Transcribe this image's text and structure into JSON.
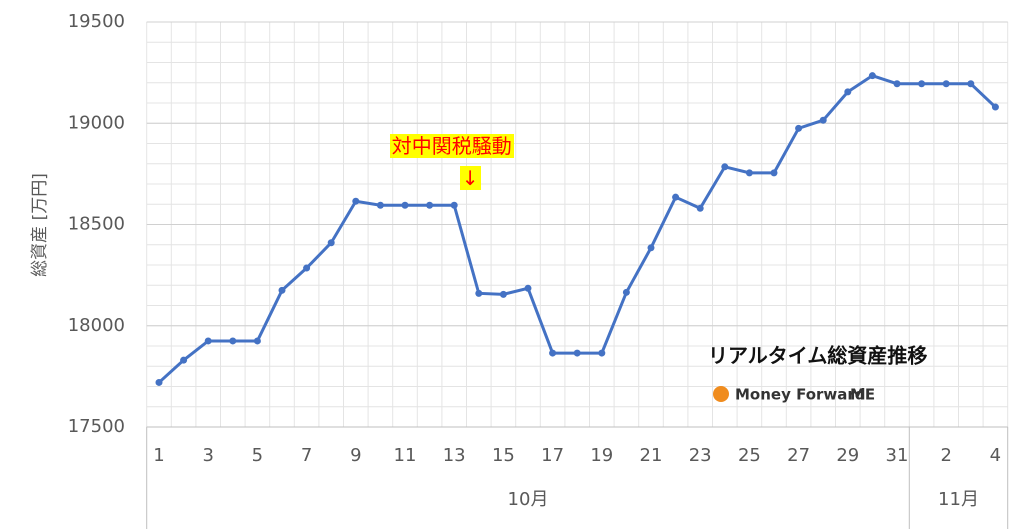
{
  "chart_data": {
    "type": "line",
    "y_label": "総資産 [万円]",
    "categories": [
      "1",
      null,
      "3",
      null,
      "5",
      null,
      "7",
      null,
      "9",
      null,
      "11",
      null,
      "13",
      null,
      "15",
      null,
      "17",
      null,
      "19",
      null,
      "21",
      null,
      "23",
      null,
      "25",
      null,
      "27",
      null,
      "29",
      null,
      "31",
      null,
      "2",
      null,
      "4"
    ],
    "groups": [
      {
        "label": "10月",
        "count": 31
      },
      {
        "label": "11月",
        "count": 4
      }
    ],
    "series": [
      {
        "name": "総資産",
        "color": "#4472c4",
        "values": [
          17720,
          17830,
          17925,
          17925,
          17925,
          18175,
          18285,
          18410,
          18615,
          18595,
          18595,
          18595,
          18595,
          18160,
          18155,
          18185,
          17865,
          17865,
          17865,
          18165,
          18385,
          18635,
          18580,
          18785,
          18755,
          18755,
          18975,
          19015,
          19155,
          19235,
          19195,
          19195,
          19195,
          19195,
          19080
        ]
      }
    ],
    "ylim": [
      17500,
      19500
    ],
    "yticks": [
      17500,
      18000,
      18500,
      19000,
      19500
    ],
    "grid": true,
    "minor_grid_step": 100,
    "annotation": {
      "text": "対中関税騒動",
      "arrow": "↓",
      "index": 13
    },
    "watermark": {
      "title": "リアルタイム総資産推移",
      "brand": "Money Forward",
      "brand_suffix": "ME"
    }
  }
}
